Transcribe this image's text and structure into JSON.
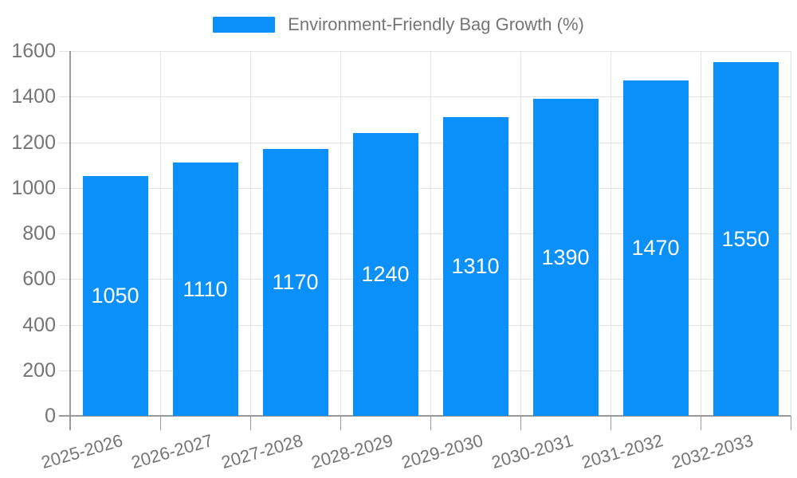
{
  "chart_data": {
    "type": "bar",
    "title": "",
    "legend_label": "Environment-Friendly Bag Growth (%)",
    "legend_position": "top-center",
    "categories": [
      "2025-2026",
      "2026-2027",
      "2027-2028",
      "2028-2029",
      "2029-2030",
      "2030-2031",
      "2031-2032",
      "2032-2033"
    ],
    "values": [
      1050,
      1110,
      1170,
      1240,
      1310,
      1390,
      1470,
      1550
    ],
    "series": [
      {
        "name": "Environment-Friendly Bag Growth (%)",
        "values": [
          1050,
          1110,
          1170,
          1240,
          1310,
          1390,
          1470,
          1550
        ]
      }
    ],
    "xlabel": "",
    "ylabel": "",
    "ylim": [
      0,
      1600
    ],
    "yticks": [
      0,
      200,
      400,
      600,
      800,
      1000,
      1200,
      1400,
      1600
    ],
    "grid": true,
    "value_labels_shown": true,
    "x_label_rotation_deg": -16,
    "colors": {
      "bar": "#0a90f8",
      "axis": "#999999",
      "grid": "#e3e3e3",
      "text": "#757575",
      "value_text": "#ffffff"
    }
  }
}
